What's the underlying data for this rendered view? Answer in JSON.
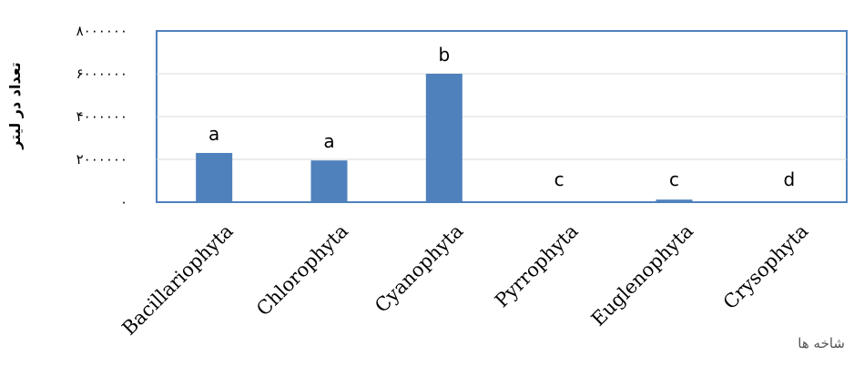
{
  "chart_data": {
    "type": "bar",
    "categories": [
      "Bacillariophyta",
      "Chlorophyta",
      "Cyanophyta",
      "Pyrrophyta",
      "Euglenophyta",
      "Crysophyta"
    ],
    "values": [
      2300000,
      1950000,
      6000000,
      40000,
      120000,
      10000
    ],
    "data_labels": [
      "a",
      "a",
      "b",
      "c",
      "c",
      "d"
    ],
    "xlabel": "شاخه ها",
    "ylabel": "تعداد در لیتر",
    "ylim": [
      0,
      8000000
    ],
    "yticks": [
      0,
      2000000,
      4000000,
      6000000,
      8000000
    ],
    "ytick_labels": [
      "۰",
      "۲۰۰۰۰۰۰",
      "۴۰۰۰۰۰۰",
      "۶۰۰۰۰۰۰",
      "۸۰۰۰۰۰۰"
    ],
    "grid": true,
    "legend": "none",
    "bar_color": "#4f81bd",
    "frame_color": "#4f81bd",
    "grid_color": "#d9d9d9"
  }
}
